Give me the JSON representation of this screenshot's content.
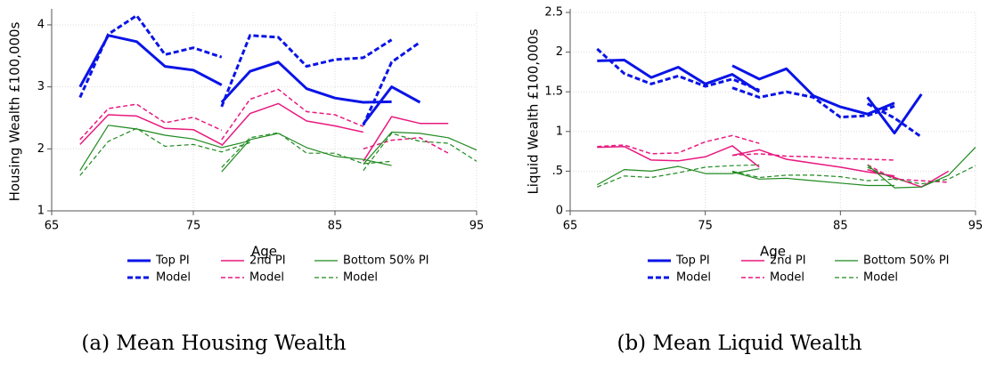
{
  "chart_data": [
    {
      "type": "line",
      "caption": "(a) Mean Housing Wealth",
      "xlabel": "Age",
      "ylabel": "Housing Wealth £100,000s",
      "xlim": [
        65,
        95
      ],
      "xticks": [
        65,
        75,
        85,
        95
      ],
      "ylim": [
        1,
        4.2
      ],
      "yticks": [
        1,
        2,
        3,
        4
      ],
      "grid": true,
      "series": [
        {
          "name": "Top PI",
          "color": "#0a14e6",
          "line_style": "solid",
          "line_width": 3,
          "x": [
            67,
            69,
            71,
            73,
            75,
            77,
            null,
            77,
            79,
            81,
            83,
            85,
            87,
            89,
            null,
            87,
            89,
            91
          ],
          "values": [
            3.0,
            3.83,
            3.73,
            3.33,
            3.27,
            3.03,
            null,
            2.75,
            3.25,
            3.4,
            2.97,
            2.82,
            2.75,
            2.76,
            null,
            2.4,
            3.0,
            2.75
          ]
        },
        {
          "name": "Model",
          "color": "#0a14e6",
          "line_style": "dashed",
          "line_width": 3,
          "x": [
            67,
            69,
            71,
            73,
            75,
            77,
            null,
            77,
            79,
            81,
            83,
            85,
            87,
            89,
            null,
            87,
            89,
            91
          ],
          "values": [
            2.83,
            3.85,
            4.15,
            3.52,
            3.63,
            3.48,
            null,
            2.68,
            3.83,
            3.8,
            3.33,
            3.44,
            3.47,
            3.76,
            null,
            2.38,
            3.4,
            3.72
          ]
        },
        {
          "name": "2nd PI",
          "color": "#e8197f",
          "line_style": "solid",
          "line_width": 1.5,
          "x": [
            67,
            69,
            71,
            73,
            75,
            77,
            null,
            77,
            79,
            81,
            83,
            85,
            87,
            null,
            87,
            89,
            91,
            93
          ],
          "values": [
            2.07,
            2.55,
            2.53,
            2.33,
            2.31,
            2.07,
            null,
            2.05,
            2.57,
            2.73,
            2.45,
            2.37,
            2.27,
            null,
            1.8,
            2.52,
            2.41,
            2.41
          ]
        },
        {
          "name": "Model",
          "color": "#e8197f",
          "line_style": "dashed",
          "line_width": 1.5,
          "x": [
            67,
            69,
            71,
            73,
            75,
            77,
            null,
            77,
            79,
            81,
            83,
            85,
            87,
            null,
            87,
            89,
            91,
            93
          ],
          "values": [
            2.15,
            2.65,
            2.72,
            2.42,
            2.51,
            2.3,
            null,
            2.15,
            2.8,
            2.96,
            2.6,
            2.55,
            2.36,
            null,
            2.0,
            2.14,
            2.18,
            1.93
          ]
        },
        {
          "name": "Bottom 50% PI",
          "color": "#1f8a1f",
          "line_style": "solid",
          "line_width": 1.2,
          "x": [
            67,
            69,
            71,
            73,
            75,
            77,
            79,
            null,
            77,
            79,
            81,
            83,
            85,
            87,
            89,
            null,
            87,
            89,
            91,
            93,
            95
          ],
          "values": [
            1.65,
            2.38,
            2.32,
            2.22,
            2.16,
            2.02,
            2.13,
            null,
            1.63,
            2.15,
            2.25,
            2.02,
            1.88,
            1.83,
            1.73,
            null,
            1.75,
            2.27,
            2.25,
            2.18,
            1.98
          ]
        },
        {
          "name": "Model",
          "color": "#1f8a1f",
          "line_style": "dashed",
          "line_width": 1.2,
          "x": [
            67,
            69,
            71,
            73,
            75,
            77,
            79,
            null,
            77,
            79,
            81,
            83,
            85,
            87,
            89,
            null,
            87,
            89,
            91,
            93,
            95
          ],
          "values": [
            1.57,
            2.12,
            2.33,
            2.04,
            2.07,
            1.95,
            2.1,
            null,
            1.7,
            2.18,
            2.26,
            1.93,
            1.93,
            1.76,
            1.8,
            null,
            1.65,
            2.25,
            2.12,
            2.09,
            1.8
          ]
        }
      ]
    },
    {
      "type": "line",
      "caption": "(b) Mean Liquid Wealth",
      "xlabel": "Age",
      "ylabel": "Liquid Wealth £100,000s",
      "xlim": [
        65,
        95
      ],
      "xticks": [
        65,
        75,
        85,
        95
      ],
      "ylim": [
        0,
        2.5
      ],
      "yticks": [
        0,
        {
          "value": 0.5,
          "label": ".5"
        },
        1,
        1.5,
        2,
        2.5
      ],
      "grid": true,
      "series": [
        {
          "name": "Top PI",
          "color": "#0a14e6",
          "line_style": "solid",
          "line_width": 3,
          "x": [
            67,
            69,
            71,
            73,
            75,
            77,
            79,
            null,
            77,
            79,
            81,
            83,
            85,
            87,
            89,
            null,
            87,
            89,
            91
          ],
          "values": [
            1.89,
            1.9,
            1.68,
            1.81,
            1.6,
            1.72,
            1.5,
            null,
            1.83,
            1.66,
            1.79,
            1.45,
            1.31,
            1.22,
            1.36,
            null,
            1.43,
            0.98,
            1.47
          ]
        },
        {
          "name": "Model",
          "color": "#0a14e6",
          "line_style": "dashed",
          "line_width": 3,
          "x": [
            67,
            69,
            71,
            73,
            75,
            77,
            79,
            null,
            77,
            79,
            81,
            83,
            85,
            87,
            89,
            null,
            87,
            89,
            91
          ],
          "values": [
            2.04,
            1.73,
            1.6,
            1.7,
            1.57,
            1.66,
            1.52,
            null,
            1.55,
            1.43,
            1.5,
            1.43,
            1.18,
            1.2,
            1.32,
            null,
            1.35,
            1.17,
            0.93
          ]
        },
        {
          "name": "2nd PI",
          "color": "#e8197f",
          "line_style": "solid",
          "line_width": 1.5,
          "x": [
            67,
            69,
            71,
            73,
            75,
            77,
            79,
            null,
            77,
            79,
            81,
            83,
            85,
            87,
            89,
            null,
            87,
            89,
            91,
            93
          ],
          "values": [
            0.8,
            0.81,
            0.64,
            0.63,
            0.68,
            0.82,
            0.55,
            null,
            0.7,
            0.77,
            0.65,
            0.6,
            0.55,
            0.49,
            0.44,
            null,
            0.52,
            0.42,
            0.3,
            0.5
          ]
        },
        {
          "name": "Model",
          "color": "#e8197f",
          "line_style": "dashed",
          "line_width": 1.5,
          "x": [
            67,
            69,
            71,
            73,
            75,
            77,
            79,
            null,
            77,
            79,
            81,
            83,
            85,
            87,
            89,
            null,
            87,
            89,
            91,
            93
          ],
          "values": [
            0.81,
            0.83,
            0.72,
            0.73,
            0.87,
            0.95,
            0.85,
            null,
            0.7,
            0.72,
            0.69,
            0.68,
            0.66,
            0.65,
            0.64,
            null,
            0.58,
            0.4,
            0.38,
            0.36
          ]
        },
        {
          "name": "Bottom 50% PI",
          "color": "#1f8a1f",
          "line_style": "solid",
          "line_width": 1.2,
          "x": [
            67,
            69,
            71,
            73,
            75,
            77,
            79,
            null,
            77,
            79,
            81,
            83,
            85,
            87,
            89,
            null,
            87,
            89,
            91,
            93,
            95
          ],
          "values": [
            0.33,
            0.52,
            0.5,
            0.56,
            0.47,
            0.47,
            0.53,
            null,
            0.49,
            0.4,
            0.41,
            0.38,
            0.35,
            0.32,
            0.32,
            null,
            0.58,
            0.29,
            0.3,
            0.45,
            0.8
          ]
        },
        {
          "name": "Model",
          "color": "#1f8a1f",
          "line_style": "dashed",
          "line_width": 1.2,
          "x": [
            67,
            69,
            71,
            73,
            75,
            77,
            79,
            null,
            77,
            79,
            81,
            83,
            85,
            87,
            89,
            null,
            87,
            89,
            91,
            93,
            95
          ],
          "values": [
            0.3,
            0.44,
            0.42,
            0.48,
            0.55,
            0.57,
            0.58,
            null,
            0.5,
            0.42,
            0.45,
            0.45,
            0.43,
            0.38,
            0.4,
            null,
            0.55,
            0.4,
            0.34,
            0.4,
            0.57
          ]
        }
      ]
    }
  ]
}
